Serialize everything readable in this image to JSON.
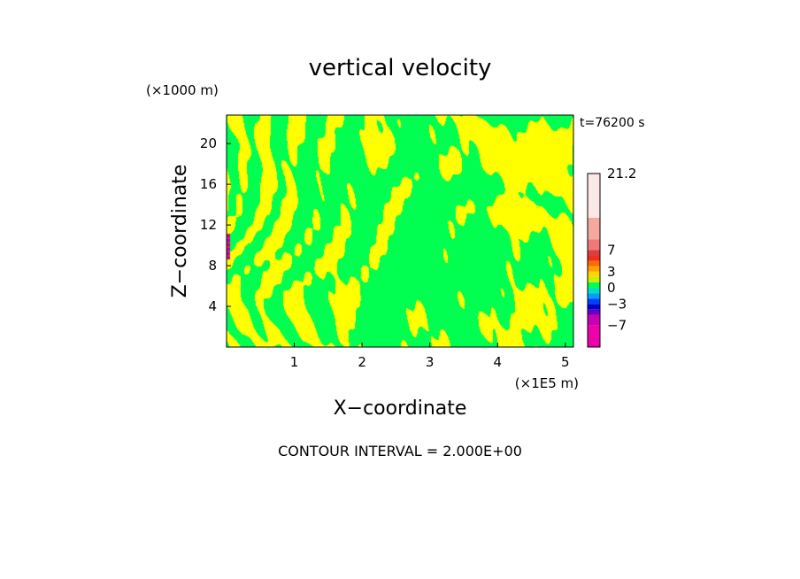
{
  "chart_data": {
    "type": "heatmap",
    "title": "vertical velocity",
    "xlabel": "X−coordinate",
    "ylabel": "Z−coordinate",
    "x_unit": "(×1E5 m)",
    "z_unit": "(×1000 m)",
    "time_label": "t=76200 s",
    "footer": "CONTOUR INTERVAL = 2.000E+00",
    "x_ticks": [
      "1",
      "2",
      "3",
      "4",
      "5"
    ],
    "x_tick_values": [
      1,
      2,
      3,
      4,
      5
    ],
    "xlim": [
      0,
      5.12
    ],
    "y_ticks": [
      "4",
      "8",
      "12",
      "16",
      "20"
    ],
    "y_tick_values": [
      4,
      8,
      12,
      16,
      20
    ],
    "ylim": [
      0,
      22.8
    ],
    "field_summary": "Alternating narrow bands of weak updraft (0 to 2) and weak downdraft (-2 to 0) across the domain; a small strong-perturbation patch near x=0, z 8-11 km",
    "colorbar": {
      "range": [
        -11,
        21.2
      ],
      "labels": [
        "21.2",
        "7",
        "3",
        "0",
        "−3",
        "−7"
      ],
      "label_values": [
        21.2,
        7,
        3,
        0,
        -3,
        -7
      ],
      "levels": [
        {
          "from": -11,
          "to": -7,
          "color": "#ee00aa"
        },
        {
          "from": -7,
          "to": -5,
          "color": "#c800b4"
        },
        {
          "from": -5,
          "to": -4,
          "color": "#6400c8"
        },
        {
          "from": -4,
          "to": -3,
          "color": "#0000cc"
        },
        {
          "from": -3,
          "to": -2,
          "color": "#0040ff"
        },
        {
          "from": -2,
          "to": -1,
          "color": "#00a0ff"
        },
        {
          "from": -1,
          "to": 0,
          "color": "#00e0c0"
        },
        {
          "from": 0,
          "to": 1,
          "color": "#00ff50"
        },
        {
          "from": 1,
          "to": 2,
          "color": "#c8f000"
        },
        {
          "from": 2,
          "to": 3,
          "color": "#ffd700"
        },
        {
          "from": 3,
          "to": 4,
          "color": "#ffa000"
        },
        {
          "from": 4,
          "to": 5,
          "color": "#ff6a00"
        },
        {
          "from": 5,
          "to": 6,
          "color": "#ee3020"
        },
        {
          "from": 6,
          "to": 7,
          "color": "#d84040"
        },
        {
          "from": 7,
          "to": 9,
          "color": "#f07878"
        },
        {
          "from": 9,
          "to": 13,
          "color": "#f4a8a0"
        },
        {
          "from": 13,
          "to": 21.2,
          "color": "#fbe8e6"
        }
      ]
    },
    "field_colors": {
      "updraft": "#ffff00",
      "downdraft": "#00ff50",
      "core_neg": "#b400c8",
      "core_pos": "#ee3020"
    }
  }
}
